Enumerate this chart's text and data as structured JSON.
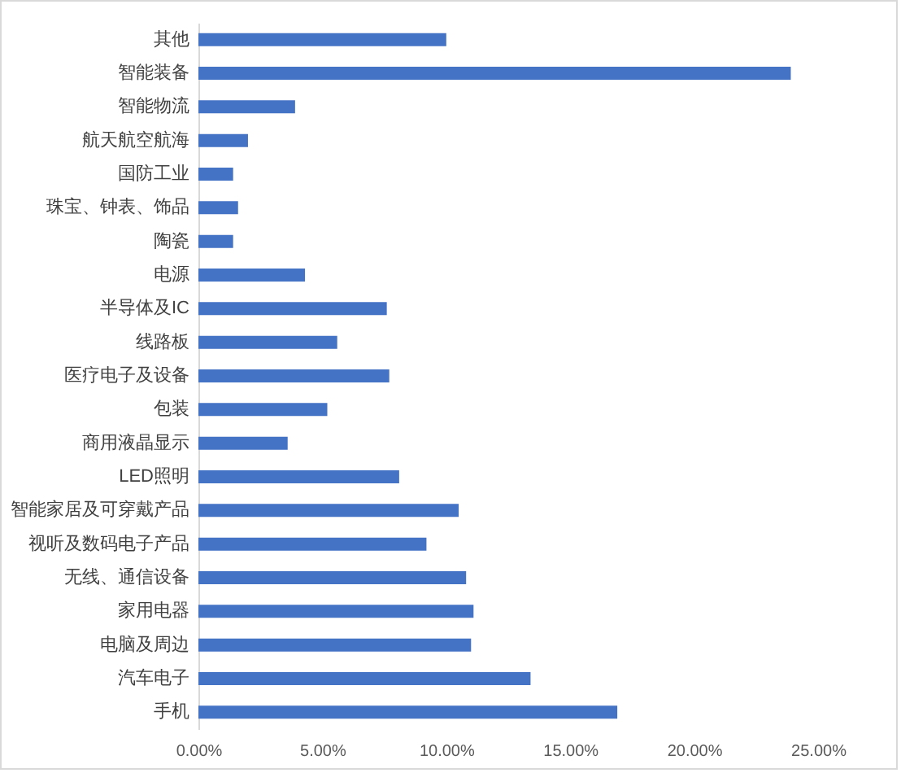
{
  "chart_data": {
    "type": "bar",
    "orientation": "horizontal",
    "categories": [
      "其他",
      "智能装备",
      "智能物流",
      "航天航空航海",
      "国防工业",
      "珠宝、钟表、饰品",
      "陶瓷",
      "电源",
      "半导体及IC",
      "线路板",
      "医疗电子及设备",
      "包装",
      "商用液晶显示",
      "LED照明",
      "智能家居及可穿戴产品",
      "视听及数码电子产品",
      "无线、通信设备",
      "家用电器",
      "电脑及周边",
      "汽车电子",
      "手机"
    ],
    "values": [
      10.0,
      23.9,
      3.9,
      2.0,
      1.4,
      1.6,
      1.4,
      4.3,
      7.6,
      5.6,
      7.7,
      5.2,
      3.6,
      8.1,
      10.5,
      9.2,
      10.8,
      11.1,
      11.0,
      13.4,
      16.9
    ],
    "color": "#4472c4",
    "xlim": [
      0,
      25
    ],
    "xticks": [
      {
        "value": 0,
        "label": "0.00%"
      },
      {
        "value": 5,
        "label": "5.00%"
      },
      {
        "value": 10,
        "label": "10.00%"
      },
      {
        "value": 15,
        "label": "15.00%"
      },
      {
        "value": 20,
        "label": "20.00%"
      },
      {
        "value": 25,
        "label": "25.00%"
      }
    ]
  }
}
